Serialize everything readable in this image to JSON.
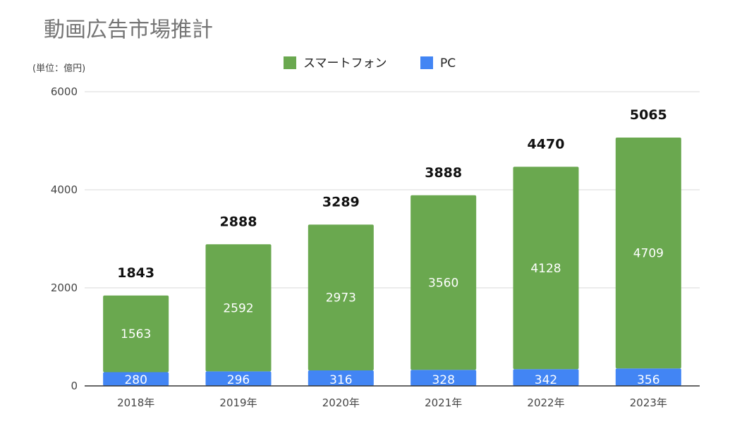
{
  "chart_data": {
    "type": "bar",
    "stacked": true,
    "title": "動画広告市場推計",
    "unit_label": "(単位：億円)",
    "categories": [
      "2018年",
      "2019年",
      "2020年",
      "2021年",
      "2022年",
      "2023年"
    ],
    "series": [
      {
        "name": "PC",
        "color": "#4285F4",
        "values": [
          280,
          296,
          316,
          328,
          342,
          356
        ]
      },
      {
        "name": "スマートフォン",
        "color": "#6AA84F",
        "values": [
          1563,
          2592,
          2973,
          3560,
          4128,
          4709
        ]
      }
    ],
    "totals": [
      1843,
      2888,
      3289,
      3888,
      4470,
      5065
    ],
    "legend_order": [
      "スマートフォン",
      "PC"
    ],
    "legend_position": "top",
    "ylim": [
      0,
      6000
    ],
    "yticks": [
      "0",
      "2000",
      "4000",
      "6000"
    ],
    "grid": true
  }
}
